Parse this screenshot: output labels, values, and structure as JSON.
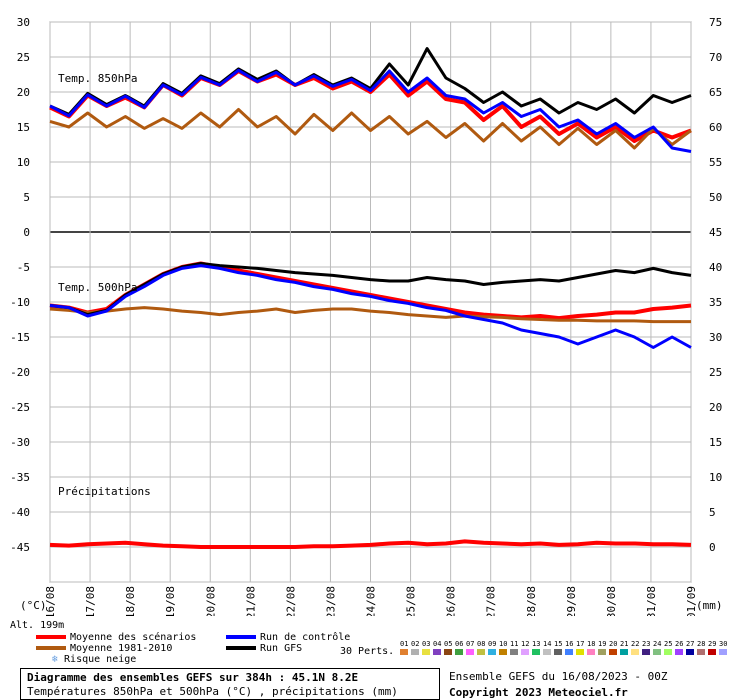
{
  "chart_data": {
    "type": "line",
    "title": "Diagramme des ensembles GEFS sur 384h : 45.1N 8.2E",
    "subtitle": "Températures 850hPa et 500hPa (°C) , précipitations (mm)",
    "x_tick_labels": [
      "16/08",
      "17/08",
      "18/08",
      "19/08",
      "20/08",
      "21/08",
      "22/08",
      "23/08",
      "24/08",
      "25/08",
      "26/08",
      "27/08",
      "28/08",
      "29/08",
      "30/08",
      "31/08",
      "01/09"
    ],
    "left_axis": {
      "label": "(°C)",
      "ticks": [
        30,
        25,
        20,
        15,
        10,
        5,
        0,
        -5,
        -10,
        -15,
        -20,
        -25,
        -30,
        -35,
        -40,
        -45
      ]
    },
    "right_axis_temp850": {
      "ticks": [
        75,
        70,
        65,
        60,
        55,
        50
      ]
    },
    "right_axis_temp500": {
      "ticks": [
        45,
        40,
        35,
        30,
        25,
        20,
        15,
        10,
        5,
        0
      ]
    },
    "right_axis_label": "(mm)",
    "panels": [
      {
        "name": "Temp. 850hPa",
        "series": [
          {
            "name": "Moyenne des scénarios",
            "color": "#ff0000",
            "values": [
              17.8,
              16.5,
              19.5,
              18.0,
              19.2,
              17.8,
              21.0,
              19.5,
              22.0,
              21.0,
              23.0,
              21.5,
              22.5,
              21.0,
              22.0,
              20.5,
              21.5,
              20.0,
              22.5,
              19.5,
              21.5,
              19.0,
              18.5,
              16.0,
              18.0,
              15.0,
              16.5,
              14.0,
              15.5,
              13.5,
              15.0,
              13.0,
              14.5,
              13.5,
              14.5
            ]
          },
          {
            "name": "Moyenne 1981-2010",
            "color": "#b05a10",
            "values": [
              15.8,
              15.0,
              17.0,
              15.0,
              16.5,
              14.8,
              16.2,
              14.8,
              17.0,
              15.0,
              17.5,
              15.0,
              16.5,
              14.0,
              16.8,
              14.5,
              17.0,
              14.5,
              16.5,
              14.0,
              15.8,
              13.5,
              15.5,
              13.0,
              15.5,
              13.0,
              15.0,
              12.5,
              14.8,
              12.5,
              14.5,
              12.0,
              14.8,
              12.5,
              14.5
            ]
          },
          {
            "name": "Run GFS",
            "color": "#000000",
            "values": [
              18.0,
              16.8,
              19.8,
              18.2,
              19.5,
              18.0,
              21.2,
              19.8,
              22.3,
              21.2,
              23.3,
              21.8,
              23.0,
              21.0,
              22.5,
              21.0,
              22.0,
              20.5,
              24.0,
              21.0,
              26.2,
              22.0,
              20.5,
              18.5,
              20.0,
              18.0,
              19.0,
              17.0,
              18.5,
              17.5,
              19.0,
              17.0,
              19.5,
              18.5,
              19.5
            ]
          },
          {
            "name": "Run de contrôle",
            "color": "#0000ff",
            "values": [
              18.0,
              16.6,
              19.6,
              18.0,
              19.4,
              17.8,
              21.0,
              19.6,
              22.1,
              21.0,
              23.1,
              21.5,
              22.8,
              21.0,
              22.3,
              20.8,
              21.8,
              20.2,
              23.0,
              20.0,
              22.0,
              19.5,
              19.0,
              17.0,
              18.5,
              16.5,
              17.5,
              15.0,
              16.0,
              14.0,
              15.5,
              13.5,
              15.0,
              12.0,
              11.5
            ]
          }
        ]
      },
      {
        "name": "Temp. 500hPa",
        "series": [
          {
            "name": "Moyenne des scénarios",
            "color": "#ff0000",
            "values": [
              -10.5,
              -10.8,
              -11.5,
              -11.0,
              -9.0,
              -7.5,
              -6.0,
              -5.0,
              -4.5,
              -5.0,
              -5.5,
              -6.0,
              -6.5,
              -7.0,
              -7.5,
              -8.0,
              -8.5,
              -9.0,
              -9.5,
              -10.0,
              -10.5,
              -11.0,
              -11.5,
              -11.8,
              -12.0,
              -12.2,
              -12.0,
              -12.3,
              -12.0,
              -11.8,
              -11.5,
              -11.5,
              -11.0,
              -10.8,
              -10.5
            ]
          },
          {
            "name": "Moyenne 1981-2010",
            "color": "#b05a10",
            "values": [
              -11.0,
              -11.2,
              -11.5,
              -11.3,
              -11.0,
              -10.8,
              -11.0,
              -11.3,
              -11.5,
              -11.8,
              -11.5,
              -11.3,
              -11.0,
              -11.5,
              -11.2,
              -11.0,
              -11.0,
              -11.3,
              -11.5,
              -11.8,
              -12.0,
              -12.2,
              -12.0,
              -12.1,
              -12.2,
              -12.4,
              -12.5,
              -12.6,
              -12.6,
              -12.7,
              -12.7,
              -12.7,
              -12.8,
              -12.8,
              -12.8
            ]
          },
          {
            "name": "Run GFS",
            "color": "#000000",
            "values": [
              -10.5,
              -10.8,
              -11.8,
              -11.2,
              -9.0,
              -7.5,
              -6.0,
              -5.0,
              -4.5,
              -4.8,
              -5.0,
              -5.2,
              -5.5,
              -5.8,
              -6.0,
              -6.2,
              -6.5,
              -6.8,
              -7.0,
              -7.0,
              -6.5,
              -6.8,
              -7.0,
              -7.5,
              -7.2,
              -7.0,
              -6.8,
              -7.0,
              -6.5,
              -6.0,
              -5.5,
              -5.8,
              -5.2,
              -5.8,
              -6.2
            ]
          },
          {
            "name": "Run de contrôle",
            "color": "#0000ff",
            "values": [
              -10.5,
              -10.8,
              -12.0,
              -11.3,
              -9.2,
              -7.8,
              -6.2,
              -5.2,
              -4.8,
              -5.2,
              -5.8,
              -6.2,
              -6.8,
              -7.2,
              -7.8,
              -8.2,
              -8.8,
              -9.2,
              -9.8,
              -10.2,
              -10.8,
              -11.2,
              -12.0,
              -12.5,
              -13.0,
              -14.0,
              -14.5,
              -15.0,
              -16.0,
              -15.0,
              -14.0,
              -15.0,
              -16.5,
              -15.0,
              -16.5
            ]
          }
        ]
      },
      {
        "name": "Précipitations",
        "series": [
          {
            "name": "Moyenne des scénarios",
            "color": "#ff0000",
            "values": [
              0.3,
              0.2,
              0.4,
              0.5,
              0.6,
              0.4,
              0.2,
              0.1,
              0.0,
              0.0,
              0.0,
              0.0,
              0.0,
              0.0,
              0.1,
              0.1,
              0.2,
              0.3,
              0.5,
              0.6,
              0.4,
              0.5,
              0.8,
              0.6,
              0.5,
              0.4,
              0.5,
              0.3,
              0.4,
              0.6,
              0.5,
              0.5,
              0.4,
              0.4,
              0.3
            ]
          }
        ]
      }
    ],
    "legend": [
      {
        "name": "Moyenne des scénarios",
        "color": "#ff0000"
      },
      {
        "name": "Moyenne 1981-2010",
        "color": "#b05a10"
      },
      {
        "name": "Risque neige",
        "color": "#6aa0e0"
      },
      {
        "name": "Run de contrôle",
        "color": "#0000ff"
      },
      {
        "name": "Run GFS",
        "color": "#000000"
      }
    ],
    "perturbations_label": "30 Perts.",
    "perturbation_ids": [
      "01",
      "02",
      "03",
      "04",
      "05",
      "06",
      "07",
      "08",
      "09",
      "10",
      "11",
      "12",
      "13",
      "14",
      "15",
      "16",
      "17",
      "18",
      "19",
      "20",
      "21",
      "22",
      "23",
      "24",
      "25",
      "26",
      "27",
      "28",
      "29",
      "30"
    ],
    "perturbation_colors": [
      "#e08030",
      "#b0b0b0",
      "#e8e040",
      "#8040c0",
      "#8b4513",
      "#40a040",
      "#ff60ff",
      "#c0c040",
      "#30b0e0",
      "#c08000",
      "#808080",
      "#e0a0ff",
      "#20c060",
      "#c0c0c0",
      "#606060",
      "#4080ff",
      "#e0e000",
      "#ff80c0",
      "#a0a060",
      "#c04000",
      "#00a0a0",
      "#ffe080",
      "#402080",
      "#80c080",
      "#a0ff60",
      "#a040ff",
      "#0000a0",
      "#b07070",
      "#c00000",
      "#a0a0ff"
    ],
    "grid": true,
    "altitude_label": "Alt. 199m"
  },
  "run_info": "Ensemble GEFS du 16/08/2023 - 00Z",
  "copyright": "Copyright 2023 Meteociel.fr"
}
